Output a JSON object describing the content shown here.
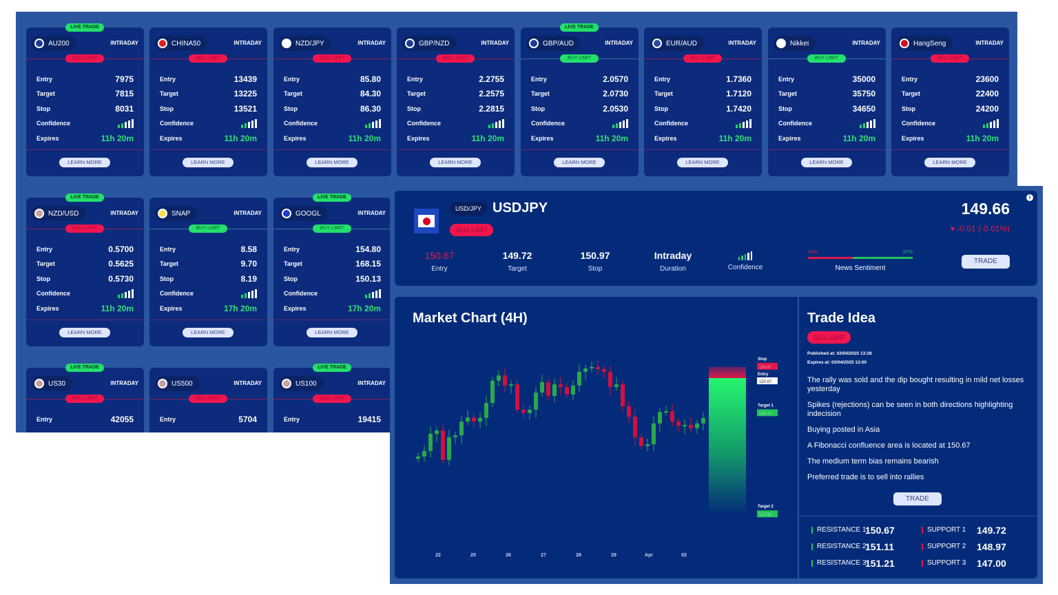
{
  "cards": [
    {
      "symbol": "AU200",
      "duration": "INTRADAY",
      "live": "LIVE TRADE",
      "order": "SELL LIMIT",
      "side": "sell",
      "entry": "7975",
      "target": "7815",
      "stop": "8031",
      "expires": "11h 20m",
      "confidence": 2,
      "flag": "au"
    },
    {
      "symbol": "CHINA50",
      "duration": "INTRADAY",
      "order": "SELL LIMIT",
      "side": "sell",
      "entry": "13439",
      "target": "13225",
      "stop": "13521",
      "expires": "11h 20m",
      "confidence": 2,
      "flag": "cn"
    },
    {
      "symbol": "NZD/JPY",
      "duration": "INTRADAY",
      "order": "SELL LIMIT",
      "side": "sell",
      "entry": "85.80",
      "target": "84.30",
      "stop": "86.30",
      "expires": "11h 20m",
      "confidence": 2,
      "flag": "jp"
    },
    {
      "symbol": "GBP/NZD",
      "duration": "INTRADAY",
      "order": "SELL LIMIT",
      "side": "sell",
      "entry": "2.2755",
      "target": "2.2575",
      "stop": "2.2815",
      "expires": "11h 20m",
      "confidence": 2,
      "flag": "nz"
    },
    {
      "symbol": "GBP/AUD",
      "duration": "INTRADAY",
      "live": "LIVE TRADE",
      "order": "BUY LIMIT",
      "side": "buy",
      "entry": "2.0570",
      "target": "2.0730",
      "stop": "2.0530",
      "expires": "11h 20m",
      "confidence": 2,
      "flag": "au"
    },
    {
      "symbol": "EUR/AUD",
      "duration": "INTRADAY",
      "order": "SELL LIMIT",
      "side": "sell",
      "entry": "1.7360",
      "target": "1.7120",
      "stop": "1.7420",
      "expires": "11h 20m",
      "confidence": 2,
      "flag": "eu"
    },
    {
      "symbol": "Nikkei",
      "duration": "INTRADAY",
      "order": "BUY LIMIT",
      "side": "buy",
      "entry": "35000",
      "target": "35750",
      "stop": "34650",
      "expires": "11h 20m",
      "confidence": 2,
      "flag": "jp"
    },
    {
      "symbol": "HangSeng",
      "duration": "INTRADAY",
      "order": "SELL LIMIT",
      "side": "sell",
      "entry": "23600",
      "target": "22400",
      "stop": "24200",
      "expires": "11h 20m",
      "confidence": 2,
      "flag": "hk"
    },
    {
      "symbol": "NZD/USD",
      "duration": "INTRADAY",
      "live": "LIVE TRADE",
      "order": "SELL LIMIT",
      "side": "sell",
      "entry": "0.5700",
      "target": "0.5625",
      "stop": "0.5730",
      "expires": "11h 20m",
      "confidence": 2,
      "flag": "us"
    },
    {
      "symbol": "SNAP",
      "duration": "INTRADAY",
      "order": "BUY LIMIT",
      "side": "buy",
      "entry": "8.58",
      "target": "9.70",
      "stop": "8.19",
      "expires": "17h 20m",
      "confidence": 2,
      "flag": "snap"
    },
    {
      "symbol": "GOOGL",
      "duration": "INTRADAY",
      "live": "LIVE TRADE",
      "order": "BUY LIMIT",
      "side": "buy",
      "entry": "154.80",
      "target": "168.15",
      "stop": "150.13",
      "expires": "17h 20m",
      "confidence": 2,
      "flag": "g"
    },
    {
      "symbol": "US30",
      "duration": "INTRADAY",
      "live": "LIVE TRADE",
      "order": "SELL LIMIT",
      "side": "sell",
      "entry": "42055",
      "flag": "us"
    },
    {
      "symbol": "US500",
      "duration": "INTRADAY",
      "order": "SELL LIMIT",
      "side": "sell",
      "entry": "5704",
      "flag": "us"
    },
    {
      "symbol": "US100",
      "duration": "INTRADAY",
      "live": "LIVE TRADE",
      "order": "SELL LIMIT",
      "side": "sell",
      "entry": "19415",
      "flag": "us"
    }
  ],
  "card_labels": {
    "entry": "Entry",
    "target": "Target",
    "stop": "Stop",
    "confidence": "Confidence",
    "expires": "Expires",
    "learn_more": "LEARN MORE"
  },
  "detail": {
    "pair_badge": "USD/JPY",
    "symbol": "USDJPY",
    "order": "SELL LIMIT",
    "price": "149.66",
    "change": "▾ -0.01 (-0.01%)",
    "stats": [
      {
        "value": "150.67",
        "label": "Entry"
      },
      {
        "value": "149.72",
        "label": "Target"
      },
      {
        "value": "150.97",
        "label": "Stop"
      },
      {
        "value": "Intraday",
        "label": "Duration"
      }
    ],
    "confidence_label": "Confidence",
    "confidence": 3,
    "sentiment": {
      "label": "News Sentiment",
      "bearish": "43%",
      "bullish": "57%",
      "bearish_pct": 43
    },
    "trade_label": "TRADE",
    "info_icon": "info-icon"
  },
  "chart": {
    "title": "Market Chart (4H)",
    "chart_data": {
      "type": "candlestick",
      "x_ticks": [
        "22",
        "25",
        "26",
        "27",
        "28",
        "29",
        "Apr",
        "02"
      ],
      "first_open": 148.5,
      "closes": [
        148.56,
        148.71,
        149.17,
        149.26,
        148.47,
        149.08,
        149.13,
        149.5,
        149.61,
        149.5,
        149.6,
        150.0,
        150.6,
        150.74,
        150.47,
        150.5,
        149.82,
        149.73,
        149.82,
        150.28,
        150.56,
        150.19,
        150.5,
        150.43,
        150.23,
        150.47,
        150.84,
        150.93,
        150.97,
        150.91,
        150.84,
        150.43,
        150.5,
        149.91,
        149.63,
        149.08,
        148.84,
        148.89,
        149.45,
        149.76,
        149.78,
        149.5,
        149.39,
        149.41,
        149.32,
        149.45,
        149.6
      ],
      "levels": [
        {
          "name": "Stop",
          "value": "150.97",
          "color": "#e0184a"
        },
        {
          "name": "Entry",
          "value": "150.67",
          "color": "#ffffff"
        },
        {
          "name": "Target 1",
          "value": "149.72",
          "color": "#22c35a"
        },
        {
          "name": "Target 2",
          "value": "147.00",
          "color": "#22c35a"
        }
      ]
    }
  },
  "idea": {
    "title": "Trade Idea",
    "order": "SELL LIMIT",
    "published": "Published at: 02/04/2025 13:28",
    "expires": "Expires at: 03/04/2025 13:00",
    "points": [
      "The rally was sold and the dip bought resulting in mild net losses yesterday",
      "Spikes (rejections) can be seen in both directions highlighting indecision",
      "Buying posted in Asia",
      "A Fibonacci confluence area is located at 150.67",
      "The medium term bias remains bearish",
      "Preferred trade is to sell into rallies"
    ],
    "trade_label": "TRADE",
    "resistance": [
      {
        "label": "RESISTANCE 1",
        "value": "150.67"
      },
      {
        "label": "RESISTANCE 2",
        "value": "151.11"
      },
      {
        "label": "RESISTANCE 3",
        "value": "151.21"
      }
    ],
    "support": [
      {
        "label": "SUPPORT 1",
        "value": "149.72"
      },
      {
        "label": "SUPPORT 2",
        "value": "148.97"
      },
      {
        "label": "SUPPORT 3",
        "value": "147.00"
      }
    ]
  },
  "colors": {
    "sell": "#f0164f",
    "buy": "#22e06b",
    "up": "#2aa84a",
    "down": "#d0103e"
  }
}
